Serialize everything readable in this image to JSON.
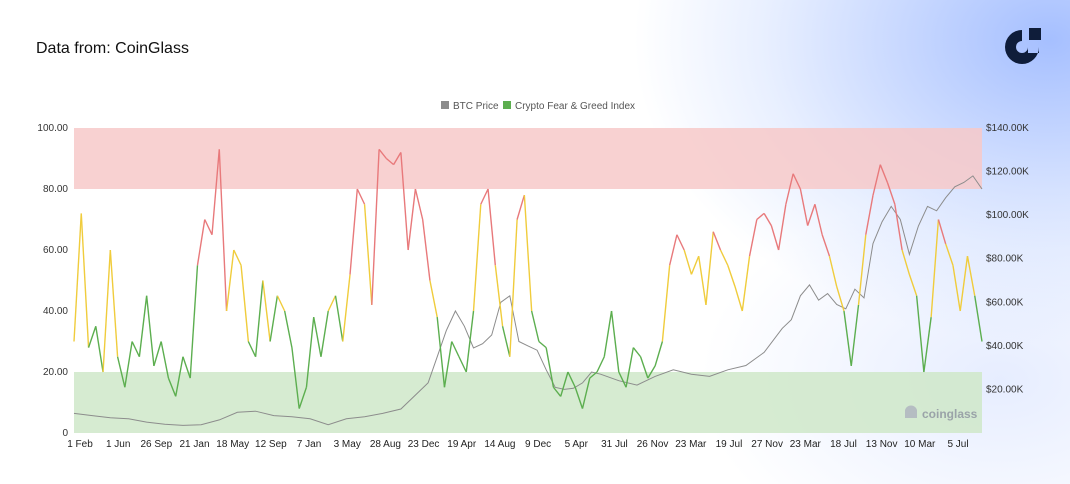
{
  "header": {
    "source_text": "Data from: CoinGlass"
  },
  "brand": {
    "logo": "coinglass-logo-icon",
    "color": "#0f1d3a"
  },
  "chart_data": {
    "type": "line",
    "xlabel": "",
    "ylabel_left": "",
    "ylabel_right": "",
    "legend_placement": "top-center",
    "grid": false,
    "x_tick_labels": [
      "1 Feb",
      "1 Jun",
      "26 Sep",
      "21 Jan",
      "18 May",
      "12 Sep",
      "7 Jan",
      "3 May",
      "28 Aug",
      "23 Dec",
      "19 Apr",
      "14 Aug",
      "9 Dec",
      "5 Apr",
      "31 Jul",
      "26 Nov",
      "23 Mar",
      "19 Jul",
      "27 Nov",
      "23 Mar",
      "18 Jul",
      "13 Nov",
      "10 Mar",
      "5 Jul"
    ],
    "y_left": {
      "ylim": [
        0,
        100
      ],
      "ticks": [
        "0",
        "20.00",
        "40.00",
        "60.00",
        "80.00",
        "100.00"
      ],
      "tick_values": [
        0,
        20,
        40,
        60,
        80,
        100
      ]
    },
    "y_right": {
      "ylim": [
        0,
        140000
      ],
      "ticks": [
        "$20.00K",
        "$40.00K",
        "$60.00K",
        "$80.00K",
        "$100.00K",
        "$120.00K",
        "$140.00K"
      ],
      "tick_values": [
        20000,
        40000,
        60000,
        80000,
        100000,
        120000,
        140000
      ]
    },
    "zones": [
      {
        "range": [
          80,
          100
        ],
        "color": "#f7c9c9"
      },
      {
        "range": [
          0,
          20
        ],
        "color": "#cfe8c9"
      }
    ],
    "thresholds": {
      "green_max": 40,
      "yellow_max": 60,
      "colors": {
        "low": "#5cae4f",
        "mid": "#f0cc3c",
        "high": "#e8797b"
      }
    },
    "series": [
      {
        "name": "BTC Price",
        "axis": "right",
        "color": "#8c8c8c",
        "x": [
          0,
          0.02,
          0.04,
          0.06,
          0.08,
          0.1,
          0.12,
          0.14,
          0.16,
          0.18,
          0.2,
          0.22,
          0.24,
          0.26,
          0.28,
          0.3,
          0.32,
          0.34,
          0.36,
          0.38,
          0.39,
          0.4,
          0.41,
          0.42,
          0.43,
          0.44,
          0.45,
          0.46,
          0.47,
          0.48,
          0.49,
          0.5,
          0.51,
          0.52,
          0.53,
          0.54,
          0.55,
          0.56,
          0.57,
          0.58,
          0.6,
          0.62,
          0.64,
          0.66,
          0.68,
          0.7,
          0.72,
          0.74,
          0.76,
          0.78,
          0.79,
          0.8,
          0.81,
          0.82,
          0.83,
          0.84,
          0.85,
          0.86,
          0.87,
          0.88,
          0.89,
          0.9,
          0.91,
          0.92,
          0.93,
          0.94,
          0.95,
          0.96,
          0.97,
          0.98,
          0.99,
          1.0
        ],
        "y": [
          9000,
          8000,
          7000,
          6500,
          5000,
          4000,
          3500,
          3800,
          6000,
          9500,
          10000,
          8000,
          7500,
          6500,
          3800,
          6500,
          7500,
          9000,
          11000,
          19000,
          23000,
          35000,
          47000,
          56000,
          49000,
          39000,
          41000,
          45000,
          60000,
          63000,
          42000,
          40000,
          38000,
          29000,
          21000,
          20000,
          20500,
          23000,
          28000,
          27000,
          24000,
          22000,
          26000,
          29000,
          27000,
          26000,
          29000,
          31000,
          37000,
          48000,
          52000,
          63000,
          68000,
          61000,
          64000,
          59000,
          57000,
          66000,
          62000,
          87000,
          97000,
          104000,
          98000,
          82000,
          95000,
          104000,
          102000,
          108000,
          113000,
          115000,
          118000,
          112000
        ]
      },
      {
        "name": "Crypto Fear & Greed Index",
        "axis": "left",
        "color": "#5cae4f",
        "x": [
          0,
          0.008,
          0.016,
          0.024,
          0.032,
          0.04,
          0.048,
          0.056,
          0.064,
          0.072,
          0.08,
          0.088,
          0.096,
          0.104,
          0.112,
          0.12,
          0.128,
          0.136,
          0.144,
          0.152,
          0.16,
          0.168,
          0.176,
          0.184,
          0.192,
          0.2,
          0.208,
          0.216,
          0.224,
          0.232,
          0.24,
          0.248,
          0.256,
          0.264,
          0.272,
          0.28,
          0.288,
          0.296,
          0.304,
          0.312,
          0.32,
          0.328,
          0.336,
          0.344,
          0.352,
          0.36,
          0.368,
          0.376,
          0.384,
          0.392,
          0.4,
          0.408,
          0.416,
          0.424,
          0.432,
          0.44,
          0.448,
          0.456,
          0.464,
          0.472,
          0.48,
          0.488,
          0.496,
          0.504,
          0.512,
          0.52,
          0.528,
          0.536,
          0.544,
          0.552,
          0.56,
          0.568,
          0.576,
          0.584,
          0.592,
          0.6,
          0.608,
          0.616,
          0.624,
          0.632,
          0.64,
          0.648,
          0.656,
          0.664,
          0.672,
          0.68,
          0.688,
          0.696,
          0.704,
          0.712,
          0.72,
          0.728,
          0.736,
          0.744,
          0.752,
          0.76,
          0.768,
          0.776,
          0.784,
          0.792,
          0.8,
          0.808,
          0.816,
          0.824,
          0.832,
          0.84,
          0.848,
          0.856,
          0.864,
          0.872,
          0.88,
          0.888,
          0.896,
          0.904,
          0.912,
          0.92,
          0.928,
          0.936,
          0.944,
          0.952,
          0.96,
          0.968,
          0.976,
          0.984,
          0.992,
          1.0
        ],
        "y": [
          30,
          72,
          28,
          35,
          20,
          60,
          25,
          15,
          30,
          25,
          45,
          22,
          30,
          18,
          12,
          25,
          18,
          55,
          70,
          65,
          93,
          40,
          60,
          55,
          30,
          25,
          50,
          30,
          45,
          40,
          28,
          8,
          15,
          38,
          25,
          40,
          45,
          30,
          52,
          80,
          75,
          42,
          93,
          90,
          88,
          92,
          60,
          80,
          70,
          50,
          38,
          15,
          30,
          25,
          20,
          40,
          75,
          80,
          55,
          35,
          25,
          70,
          78,
          40,
          30,
          28,
          15,
          12,
          20,
          15,
          8,
          18,
          20,
          25,
          40,
          20,
          15,
          28,
          25,
          18,
          22,
          30,
          55,
          65,
          60,
          52,
          58,
          42,
          66,
          60,
          55,
          48,
          40,
          58,
          70,
          72,
          68,
          60,
          75,
          85,
          80,
          68,
          75,
          65,
          58,
          48,
          40,
          22,
          42,
          65,
          78,
          88,
          82,
          75,
          60,
          52,
          45,
          20,
          38,
          70,
          62,
          55,
          40,
          58,
          45,
          30
        ]
      }
    ]
  }
}
